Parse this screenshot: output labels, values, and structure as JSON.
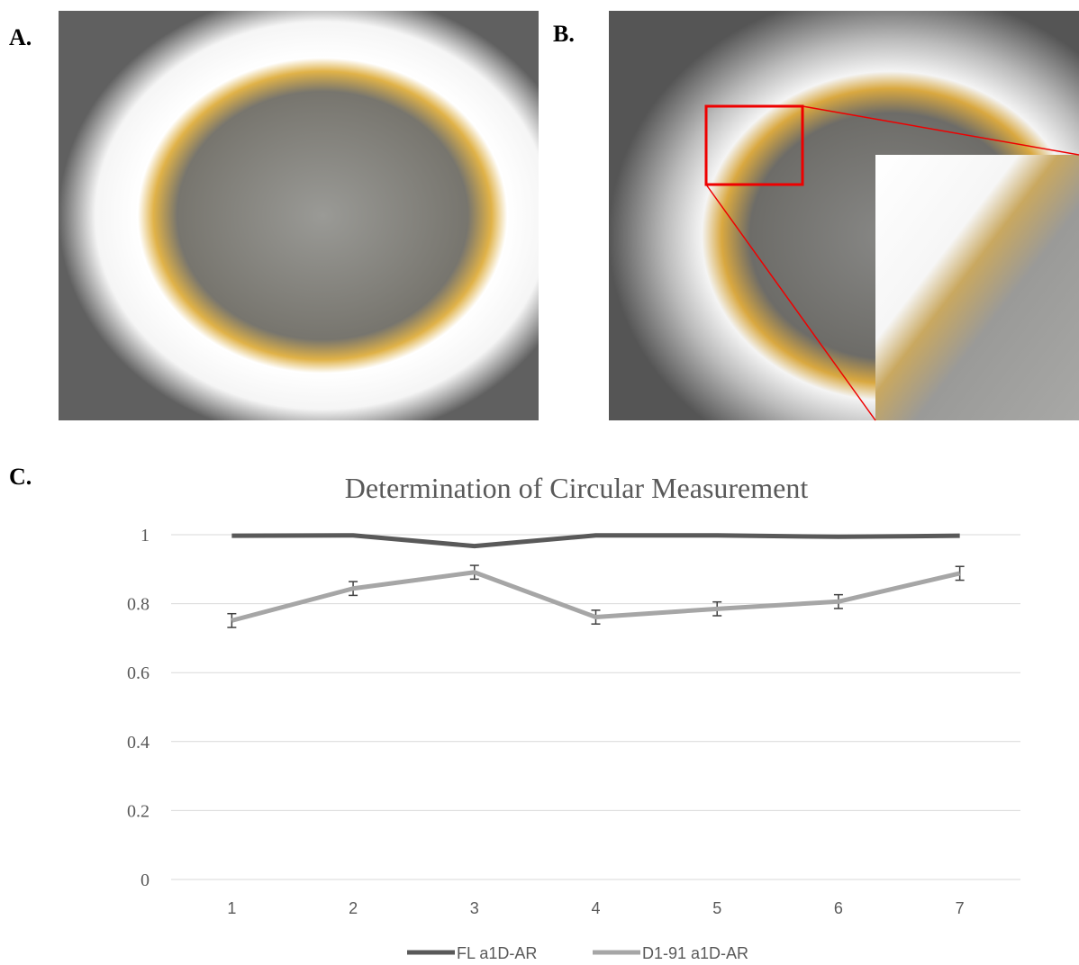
{
  "panel_labels": [
    "A.",
    "B.",
    "C."
  ],
  "chart_data": {
    "type": "line",
    "title": "Determination of Circular Measurement",
    "categories": [
      "1",
      "2",
      "3",
      "4",
      "5",
      "6",
      "7"
    ],
    "series": [
      {
        "name": "FL a1D-AR",
        "color": "#595959",
        "values": [
          0.997,
          0.998,
          0.967,
          0.998,
          0.998,
          0.994,
          0.997
        ]
      },
      {
        "name": "D1-91 a1D-AR",
        "color": "#a6a6a6",
        "values": [
          0.751,
          0.844,
          0.891,
          0.761,
          0.785,
          0.806,
          0.888
        ],
        "errors": [
          0.02,
          0.02,
          0.02,
          0.02,
          0.02,
          0.02,
          0.02
        ]
      }
    ],
    "ylim": [
      0,
      1
    ],
    "yticks": [
      0,
      0.2,
      0.4,
      0.6,
      0.8,
      1
    ],
    "grid": true,
    "legend": "bottom"
  }
}
